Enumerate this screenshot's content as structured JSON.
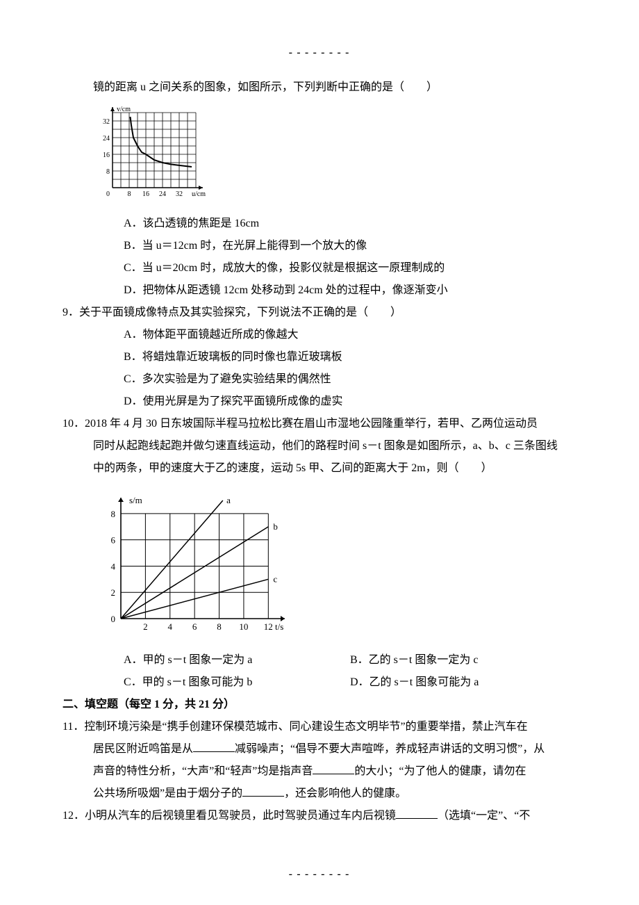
{
  "dashes": "--------",
  "q8": {
    "cont_line": "镜的距离 u 之间关系的图象，如图所示，下列判断中正确的是（　　）",
    "chart": {
      "type": "line",
      "y_label": "v/cm",
      "x_label": "u/cm",
      "x_ticks": [
        8,
        16,
        24,
        32
      ],
      "y_ticks": [
        8,
        16,
        24,
        32
      ],
      "xlim": [
        0,
        40
      ],
      "ylim": [
        0,
        36
      ],
      "grid_cols": 10,
      "grid_rows": 9,
      "grid_color": "#000000",
      "curve_color": "#000000",
      "curve_width": 2,
      "points": [
        [
          8.5,
          34
        ],
        [
          9,
          30
        ],
        [
          10,
          24
        ],
        [
          12,
          20
        ],
        [
          14,
          17
        ],
        [
          16,
          16
        ],
        [
          20,
          13.3
        ],
        [
          24,
          12
        ],
        [
          28,
          11.2
        ],
        [
          32,
          10.7
        ],
        [
          38,
          10
        ]
      ]
    },
    "A": "A．该凸透镜的焦距是 16cm",
    "B": "B．当 u＝12cm 时，在光屏上能得到一个放大的像",
    "C": "C．当 u＝20cm 时，成放大的像，投影仪就是根据这一原理制成的",
    "D": "D．把物体从距透镜 12cm 处移动到 24cm 处的过程中，像逐渐变小"
  },
  "q9": {
    "stem": "9．关于平面镜成像特点及其实验探究，下列说法不正确的是（　　）",
    "A": "A．物体距平面镜越近所成的像越大",
    "B": "B．将蜡烛靠近玻璃板的同时像也靠近玻璃板",
    "C": "C．多次实验是为了避免实验结果的偶然性",
    "D": "D．使用光屏是为了探究平面镜所成像的虚实"
  },
  "q10": {
    "stem1": "10．2018 年 4 月 30 日东坡国际半程马拉松比赛在眉山市湿地公园隆重举行，若甲、乙两位运动员",
    "stem2": "同时从起跑线起跑并做匀速直线运动，他们的路程时间 s－t 图象是如图所示，a、b、c 三条图线",
    "stem3": "中的两条，甲的速度大于乙的速度，运动 5s 甲、乙间的距离大于 2m，则（　　）",
    "chart": {
      "type": "line",
      "y_label": "s/m",
      "x_label": "t/s",
      "x_ticks": [
        2,
        4,
        6,
        8,
        10,
        12
      ],
      "y_ticks": [
        0,
        2,
        4,
        6,
        8
      ],
      "xlim": [
        0,
        13
      ],
      "ylim": [
        0,
        9
      ],
      "grid_cols": 6,
      "grid_rows": 4,
      "grid_color": "#000000",
      "series": [
        {
          "name": "a",
          "x_end": 8.3,
          "y_end": 9,
          "label_x": 8.6,
          "label_y": 9
        },
        {
          "name": "b",
          "x_end": 12,
          "y_end": 7,
          "label_x": 12.4,
          "label_y": 7
        },
        {
          "name": "c",
          "x_end": 12,
          "y_end": 3,
          "label_x": 12.4,
          "label_y": 3
        }
      ],
      "line_color": "#000000",
      "line_width": 1.5
    },
    "A": "A．甲的 s－t 图象一定为 a",
    "B": "B．乙的 s－t 图象一定为 c",
    "C": "C．甲的 s－t 图象可能为 b",
    "D": "D．乙的 s－t 图象可能为 a"
  },
  "section2_title": "二、填空题（每空 1 分，共 21 分）",
  "q11": {
    "l1a": "11．控制环境污染是“携手创建环保模范城市、同心建设生态文明毕节”的重要举措，禁止汽车在",
    "l2a": "居民区附近鸣笛是从",
    "l2b": "减弱噪声；“倡导不要大声喧哗，养成轻声讲话的文明习惯”，从",
    "l3a": "声音的特性分析，“大声”和“轻声”均是指声音",
    "l3b": "的大小；“为了他人的健康，请勿在",
    "l4a": "公共场所吸烟”是由于烟分子的",
    "l4b": "，还会影响他人的健康。"
  },
  "q12": {
    "l1a": "12．小明从汽车的后视镜里看见驾驶员，此时驾驶员通过车内后视镜",
    "l1b": "（选填“一定”、“不"
  },
  "blank_widths": {
    "w1": 60,
    "w2": 60,
    "w3": 60,
    "w4": 60
  }
}
